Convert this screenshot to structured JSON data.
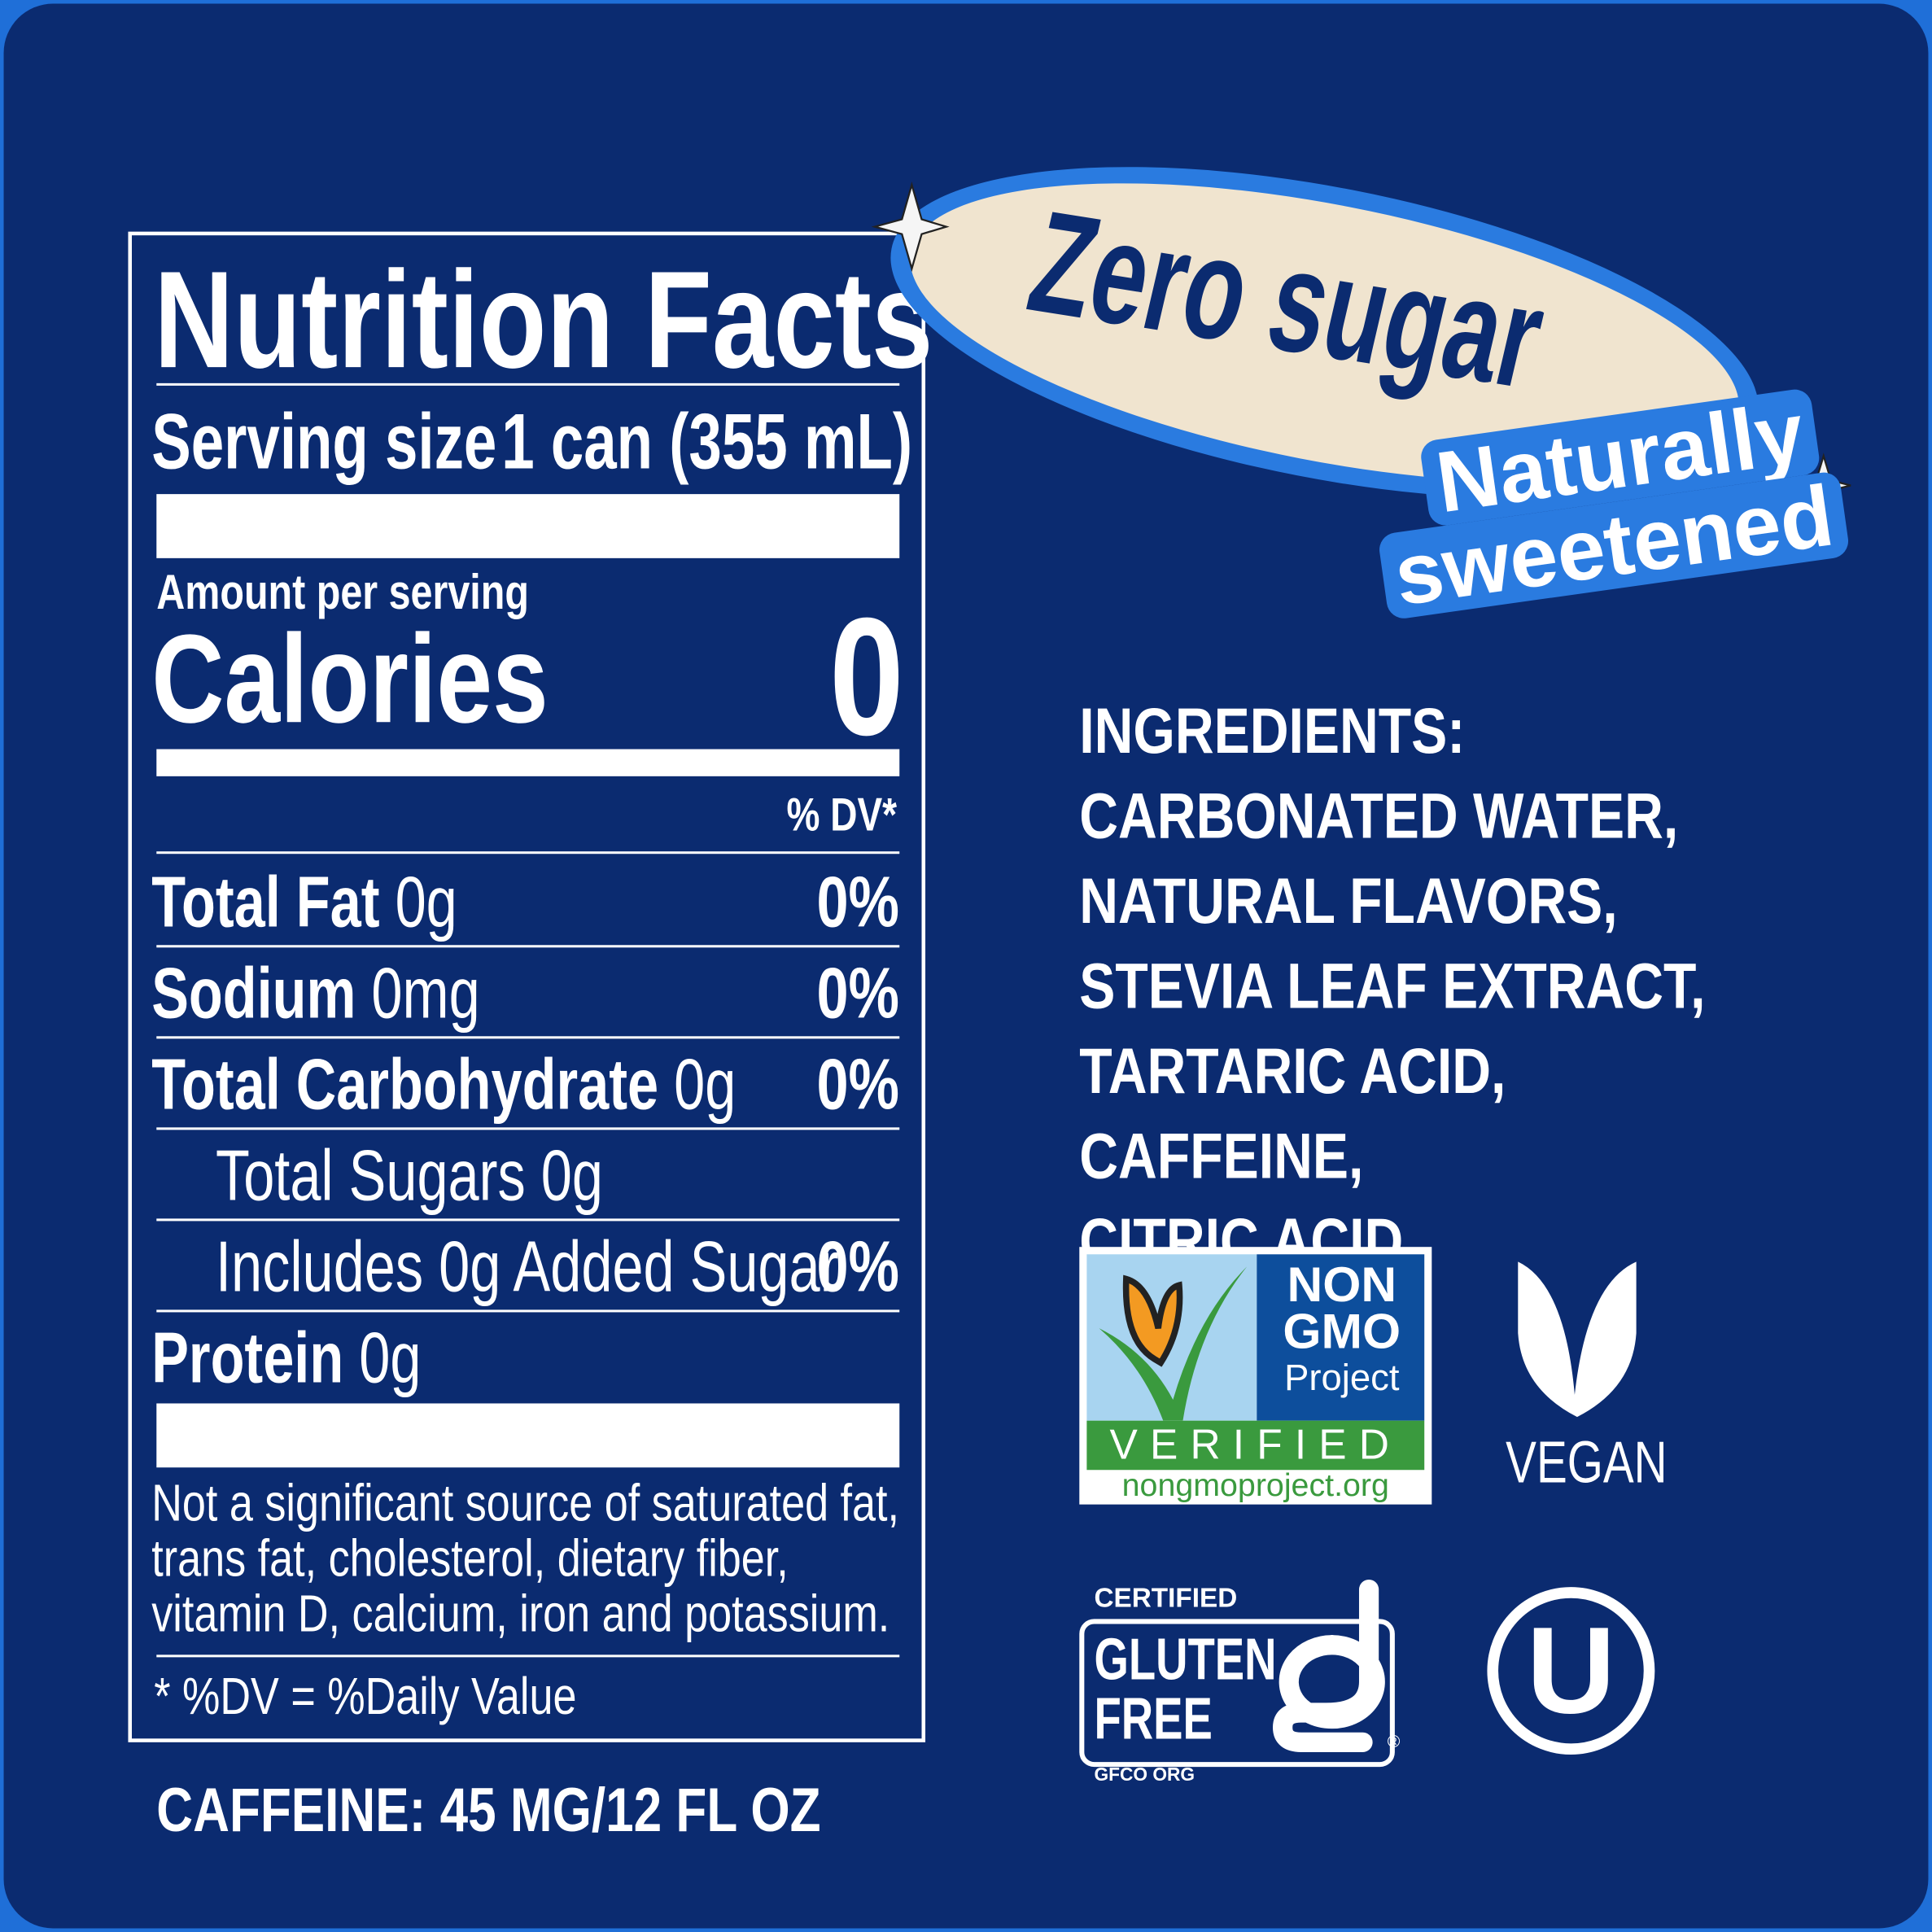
{
  "colors": {
    "background": "#0b2b70",
    "border": "#1f6fd8",
    "badge_fill": "#f0e4cf",
    "badge_ring": "#2a7be0"
  },
  "nutrition": {
    "title": "Nutrition Facts",
    "serving_label": "Serving size",
    "serving_value": "1 can (355 mL)",
    "amount_per_serving": "Amount per serving",
    "calories_label": "Calories",
    "calories_value": "0",
    "dv_header": "% DV*",
    "rows": [
      {
        "label": "Total Fat",
        "amount": "0g",
        "dv": "0%"
      },
      {
        "label": "Sodium",
        "amount": "0mg",
        "dv": "0%"
      },
      {
        "label": "Total Carbohydrate",
        "amount": "0g",
        "dv": "0%"
      },
      {
        "label": "Total Sugars 0g",
        "amount": "",
        "dv": ""
      },
      {
        "label": "Includes 0g Added Sugar",
        "amount": "",
        "dv": "0%"
      },
      {
        "label": "Protein",
        "amount": "0g",
        "dv": ""
      }
    ],
    "footnote_lines": [
      "Not a significant source of saturated fat,",
      "trans fat, cholesterol, dietary fiber,",
      "vitamin D, calcium, iron and potassium."
    ],
    "dv_note": "* %DV = %Daily Value"
  },
  "caffeine": "CAFFEINE: 45 MG/12 FL OZ",
  "badge": {
    "main": "Zero sugar",
    "sub_line1": "Naturally",
    "sub_line2": "sweetened"
  },
  "ingredients": {
    "heading": "INGREDIENTS:",
    "lines": [
      "CARBONATED WATER,",
      "NATURAL FLAVORS,",
      "STEVIA LEAF EXTRACT,",
      "TARTARIC ACID, CAFFEINE,",
      "CITRIC ACID."
    ]
  },
  "certifications": {
    "nongmo": {
      "line1": "NON",
      "line2": "GMO",
      "line3": "Project",
      "verified": "VERIFIED",
      "url": "nongmoproject.org"
    },
    "vegan": {
      "label": "VEGAN"
    },
    "gluten": {
      "certified": "CERTIFIED",
      "line1": "GLUTEN",
      "line2": "FREE",
      "org": "GFCO ORG",
      "reg": "®"
    },
    "kosher": {
      "letter": "U"
    }
  }
}
